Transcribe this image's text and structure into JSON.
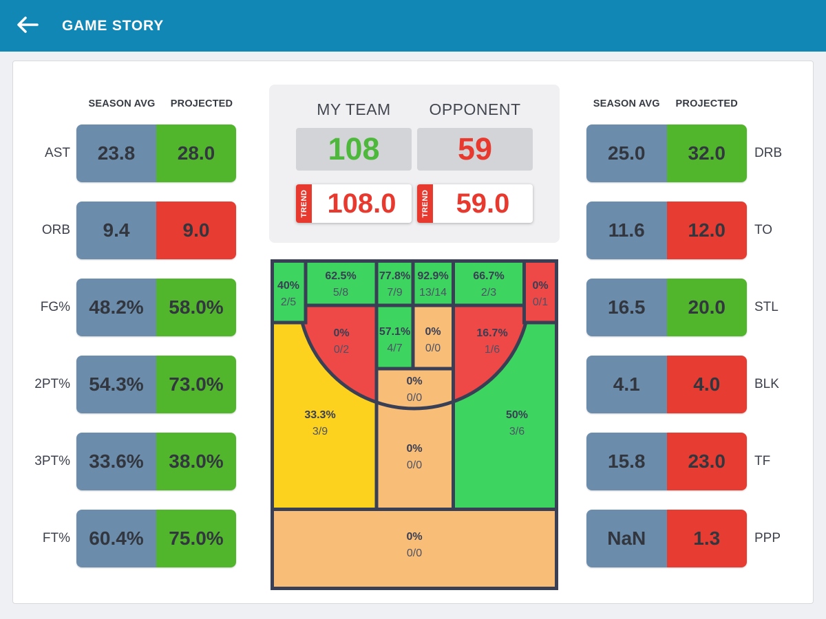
{
  "header": {
    "title": "GAME STORY"
  },
  "column_headers": {
    "season_avg": "SEASON AVG",
    "projected": "PROJECTED"
  },
  "left_stats": [
    {
      "label": "AST",
      "season_avg": "23.8",
      "projected": "28.0",
      "trend": "up"
    },
    {
      "label": "ORB",
      "season_avg": "9.4",
      "projected": "9.0",
      "trend": "down"
    },
    {
      "label": "FG%",
      "season_avg": "48.2%",
      "projected": "58.0%",
      "trend": "up"
    },
    {
      "label": "2PT%",
      "season_avg": "54.3%",
      "projected": "73.0%",
      "trend": "up"
    },
    {
      "label": "3PT%",
      "season_avg": "33.6%",
      "projected": "38.0%",
      "trend": "up"
    },
    {
      "label": "FT%",
      "season_avg": "60.4%",
      "projected": "75.0%",
      "trend": "up"
    }
  ],
  "right_stats": [
    {
      "label": "DRB",
      "season_avg": "25.0",
      "projected": "32.0",
      "trend": "up"
    },
    {
      "label": "TO",
      "season_avg": "11.6",
      "projected": "12.0",
      "trend": "down"
    },
    {
      "label": "STL",
      "season_avg": "16.5",
      "projected": "20.0",
      "trend": "up"
    },
    {
      "label": "BLK",
      "season_avg": "4.1",
      "projected": "4.0",
      "trend": "down"
    },
    {
      "label": "TF",
      "season_avg": "15.8",
      "projected": "23.0",
      "trend": "down"
    },
    {
      "label": "PPP",
      "season_avg": "NaN",
      "projected": "1.3",
      "trend": "down"
    }
  ],
  "scoreboard": {
    "my_team": {
      "label": "MY TEAM",
      "score": "108",
      "trend_label": "TREND",
      "trend_value": "108.0"
    },
    "opponent": {
      "label": "OPPONENT",
      "score": "59",
      "trend_label": "TREND",
      "trend_value": "59.0"
    }
  },
  "shot_chart": {
    "zones": [
      {
        "id": "left-corner-3",
        "pct": "40%",
        "shots": "2/5",
        "color": "green"
      },
      {
        "id": "baseline-left",
        "pct": "62.5%",
        "shots": "5/8",
        "color": "green"
      },
      {
        "id": "baseline-center-left",
        "pct": "77.8%",
        "shots": "7/9",
        "color": "green"
      },
      {
        "id": "baseline-center-right",
        "pct": "92.9%",
        "shots": "13/14",
        "color": "green"
      },
      {
        "id": "baseline-right",
        "pct": "66.7%",
        "shots": "2/3",
        "color": "green"
      },
      {
        "id": "right-corner-3",
        "pct": "0%",
        "shots": "0/1",
        "color": "red"
      },
      {
        "id": "mid-left",
        "pct": "0%",
        "shots": "0/2",
        "color": "red"
      },
      {
        "id": "paint-left",
        "pct": "57.1%",
        "shots": "4/7",
        "color": "green"
      },
      {
        "id": "paint-right",
        "pct": "0%",
        "shots": "0/0",
        "color": "orange"
      },
      {
        "id": "mid-right",
        "pct": "16.7%",
        "shots": "1/6",
        "color": "red"
      },
      {
        "id": "wing-left-3",
        "pct": "33.3%",
        "shots": "3/9",
        "color": "yellow"
      },
      {
        "id": "free-throw",
        "pct": "0%",
        "shots": "0/0",
        "color": "orange"
      },
      {
        "id": "wing-right-3",
        "pct": "50%",
        "shots": "3/6",
        "color": "green"
      },
      {
        "id": "top-of-key-3",
        "pct": "0%",
        "shots": "0/0",
        "color": "orange"
      },
      {
        "id": "backcourt",
        "pct": "0%",
        "shots": "0/0",
        "color": "orange"
      }
    ]
  },
  "colors": {
    "header": "#1187b5",
    "page_bg": "#eef0f3",
    "card_border": "#d8d9de",
    "slate": "#6c8cab",
    "stat_green": "#52b62d",
    "stat_red": "#e73c31",
    "score_green": "#4db83b",
    "score_red": "#e8392f",
    "score_box": "#d2d4d7",
    "panel_bg": "#f0f0f2",
    "court_green": "#3dd45f",
    "court_red": "#ee4946",
    "court_yellow": "#fdd21e",
    "court_orange": "#f8bd77",
    "court_navy": "#394056",
    "court_text": "#393e54",
    "court_text2": "#4c5166",
    "value_text": "#32363e"
  }
}
